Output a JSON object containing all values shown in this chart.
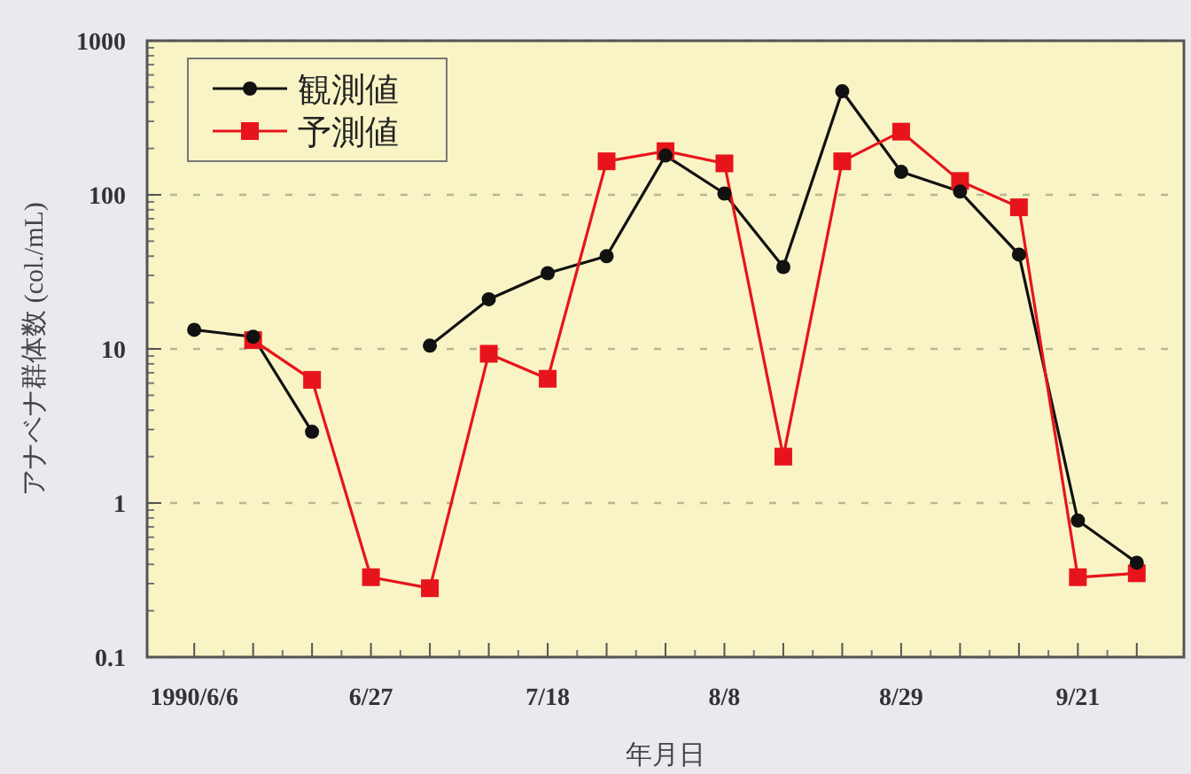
{
  "chart_data": {
    "type": "line",
    "categories": [
      "1990/6/6",
      null,
      null,
      "6/27",
      null,
      null,
      "7/18",
      null,
      null,
      "8/8",
      null,
      null,
      "8/29",
      null,
      null,
      "9/21",
      null
    ],
    "xlabel": "年月日",
    "ylabel": "アナベナ群体数 (col./mL)",
    "log": true,
    "ylim": [
      0.1,
      1000
    ],
    "yticks": [
      {
        "value": 0.1,
        "label": "0.1"
      },
      1,
      10,
      100,
      1000
    ],
    "grid": "y",
    "legend": "top left",
    "line_style": "solid",
    "series": [
      {
        "name": "観測値",
        "color": "#111111",
        "marker": "circle",
        "values": [
          13.3,
          12,
          2.9,
          null,
          10.5,
          21,
          31,
          40,
          180,
          102,
          34,
          470,
          141,
          105,
          41,
          0.77,
          0.41
        ]
      },
      {
        "name": "予測値",
        "color": "#e8141c",
        "marker": "square",
        "values": [
          null,
          11.4,
          6.3,
          0.33,
          0.28,
          9.3,
          6.4,
          165,
          192,
          160,
          2.0,
          165,
          257,
          123,
          83,
          0.33,
          0.35
        ]
      }
    ]
  }
}
